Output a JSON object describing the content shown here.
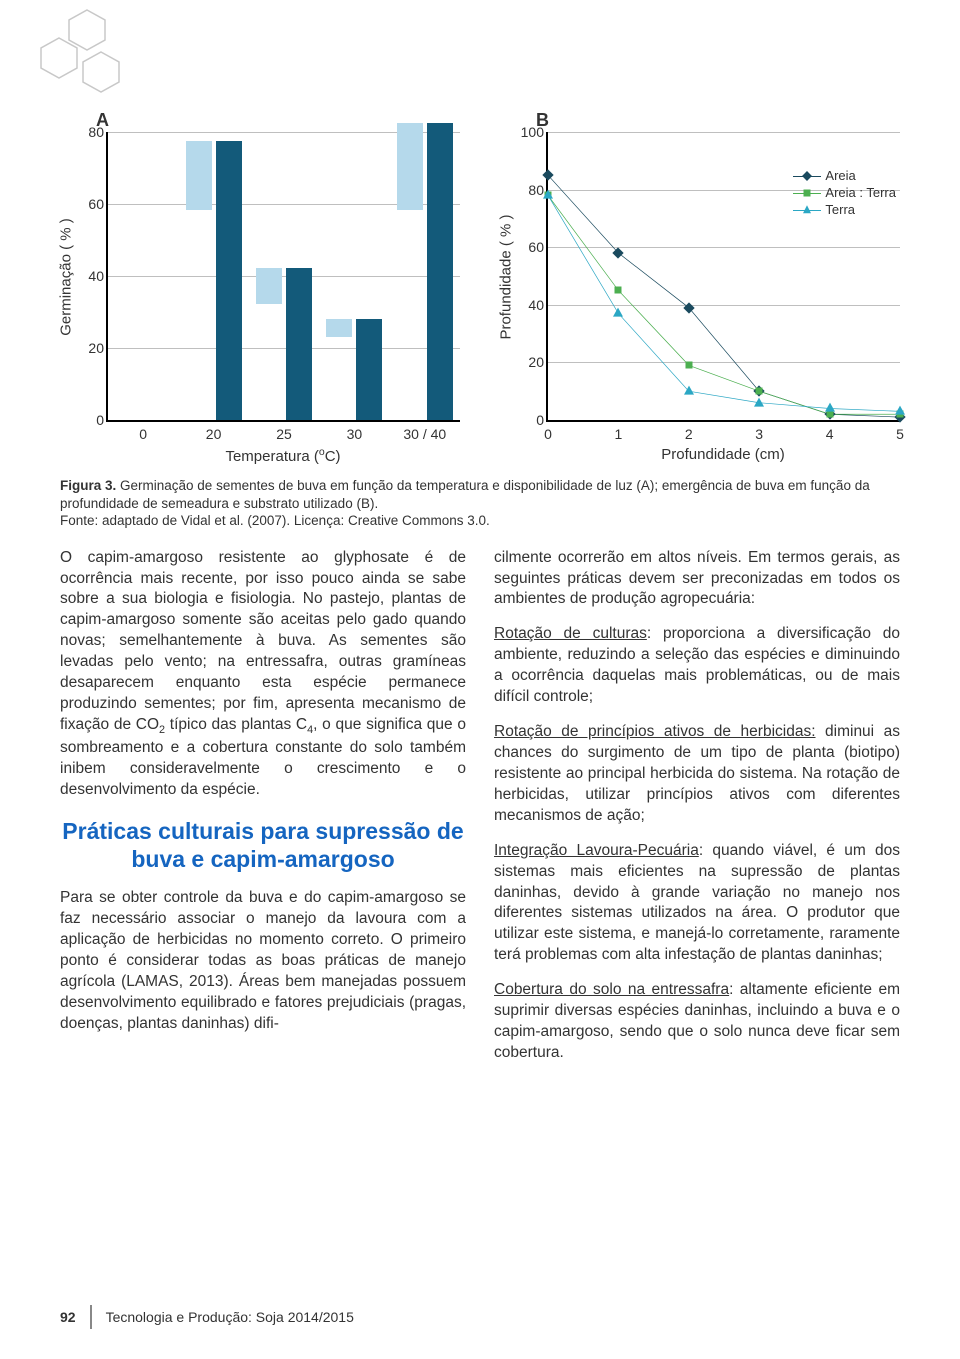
{
  "decor": {
    "hex_stroke": "#c8c8c8"
  },
  "chartA": {
    "type": "bar",
    "panel_label": "A",
    "y_label": "Germinação ( % )",
    "x_label": "Temperatura (ºC)",
    "y_max": 80,
    "y_tick_step": 20,
    "categories": [
      "0",
      "20",
      "25",
      "30",
      "30 / 40"
    ],
    "series": [
      {
        "color": "#b5d9eb",
        "values": [
          0,
          19,
          10,
          5,
          24
        ]
      },
      {
        "color": "#135a7a",
        "values": [
          0,
          77,
          42,
          28,
          82
        ]
      }
    ],
    "grid_color": "#bfbfbf",
    "background": "#ffffff"
  },
  "chartB": {
    "type": "line",
    "panel_label": "B",
    "y_label": "Profundidade ( % )",
    "x_label": "Profundidade (cm)",
    "y_max": 100,
    "y_tick_step": 20,
    "x_max": 5,
    "x_ticks": [
      "0",
      "1",
      "2",
      "3",
      "4",
      "5"
    ],
    "legend": [
      {
        "label": "Areia",
        "color": "#1a4a5e",
        "shape": "diamond"
      },
      {
        "label": "Areia : Terra",
        "color": "#4caf50",
        "shape": "square"
      },
      {
        "label": "Terra",
        "color": "#2ba7c4",
        "shape": "triangle"
      }
    ],
    "series": [
      {
        "color": "#1a4a5e",
        "shape": "diamond",
        "points": [
          [
            0,
            85
          ],
          [
            1,
            58
          ],
          [
            2,
            39
          ],
          [
            3,
            10
          ],
          [
            4,
            2
          ],
          [
            5,
            1
          ]
        ]
      },
      {
        "color": "#4caf50",
        "shape": "square",
        "points": [
          [
            0,
            78
          ],
          [
            1,
            45
          ],
          [
            2,
            19
          ],
          [
            3,
            10
          ],
          [
            4,
            2
          ],
          [
            5,
            2
          ]
        ]
      },
      {
        "color": "#2ba7c4",
        "shape": "triangle",
        "points": [
          [
            0,
            78
          ],
          [
            1,
            37
          ],
          [
            2,
            10
          ],
          [
            3,
            6
          ],
          [
            4,
            4
          ],
          [
            5,
            3
          ]
        ]
      }
    ],
    "grid_color": "#bfbfbf",
    "background": "#ffffff"
  },
  "caption": {
    "label": "Figura 3.",
    "text": " Germinação de sementes de buva em função da temperatura e disponibilidade de luz (A); emergência de buva em função da profundidade de semeadura e substrato utilizado (B).",
    "source": "Fonte: adaptado de Vidal et al. (2007). Licença: Creative Commons 3.0."
  },
  "body": {
    "left_p1": "O capim-amargoso resistente ao glyphosate é de ocorrência mais recente, por isso pouco ainda se sabe sobre a sua biologia e fisiologia. No pastejo, plantas de capim-amargoso somente são aceitas pelo gado quando novas; semelhantemente à buva. As sementes são levadas pelo vento; na entressafra, outras gramíneas desaparecem enquanto esta espécie permanece produzindo sementes; por fim, apresenta mecanismo de fixação de CO",
    "left_p1_sub1": "2",
    "left_p1_mid": " típico das plantas C",
    "left_p1_sub2": "4",
    "left_p1_end": ", o que significa que o sombreamento e a cobertura constante do solo também inibem consideravelmente o crescimento e o desenvolvimento da espécie.",
    "section_heading": "Práticas culturais para supressão de buva e capim-amargoso",
    "left_p2": "Para se obter controle da buva e do capim-amargoso se faz necessário associar o manejo da lavoura com a aplicação de herbicidas no momento correto. O primeiro ponto é considerar todas as boas práticas de manejo agrícola (LAMAS, 2013). Áreas bem manejadas possuem desenvolvimento equilibrado e fatores prejudiciais (pragas, doenças, plantas daninhas) difi-",
    "right_p1": "cilmente ocorrerão em altos níveis. Em termos gerais, as seguintes práticas devem ser preconizadas em todos os ambientes de produção agropecuária:",
    "r2_h": "Rotação de culturas",
    "r2_t": ": proporciona a diversificação do ambiente, reduzindo a seleção das espécies e diminuindo a ocorrência daquelas mais problemáticas, ou de mais difícil controle;",
    "r3_h": "Rotação de princípios ativos de herbicidas:",
    "r3_t": " diminui as chances do surgimento de um tipo de planta (biotipo) resistente ao principal herbicida do sistema. Na rotação de herbicidas, utilizar princípios ativos com diferentes mecanismos de ação;",
    "r4_h": "Integração Lavoura-Pecuária",
    "r4_t": ": quando viável, é um dos sistemas mais eficientes na supressão de plantas daninhas, devido à grande variação no manejo nos diferentes sistemas utilizados na área. O produtor que utilizar este sistema, e manejá-lo corretamente, raramente terá problemas com alta infestação de plantas daninhas;",
    "r5_h": "Cobertura do solo na entressafra",
    "r5_t": ": altamente eficiente em suprimir diversas espécies daninhas, incluindo a buva e o capim-amargoso, sendo que o solo nunca deve ficar sem cobertura."
  },
  "footer": {
    "page": "92",
    "pub": "Tecnologia e Produção: Soja 2014/2015"
  }
}
